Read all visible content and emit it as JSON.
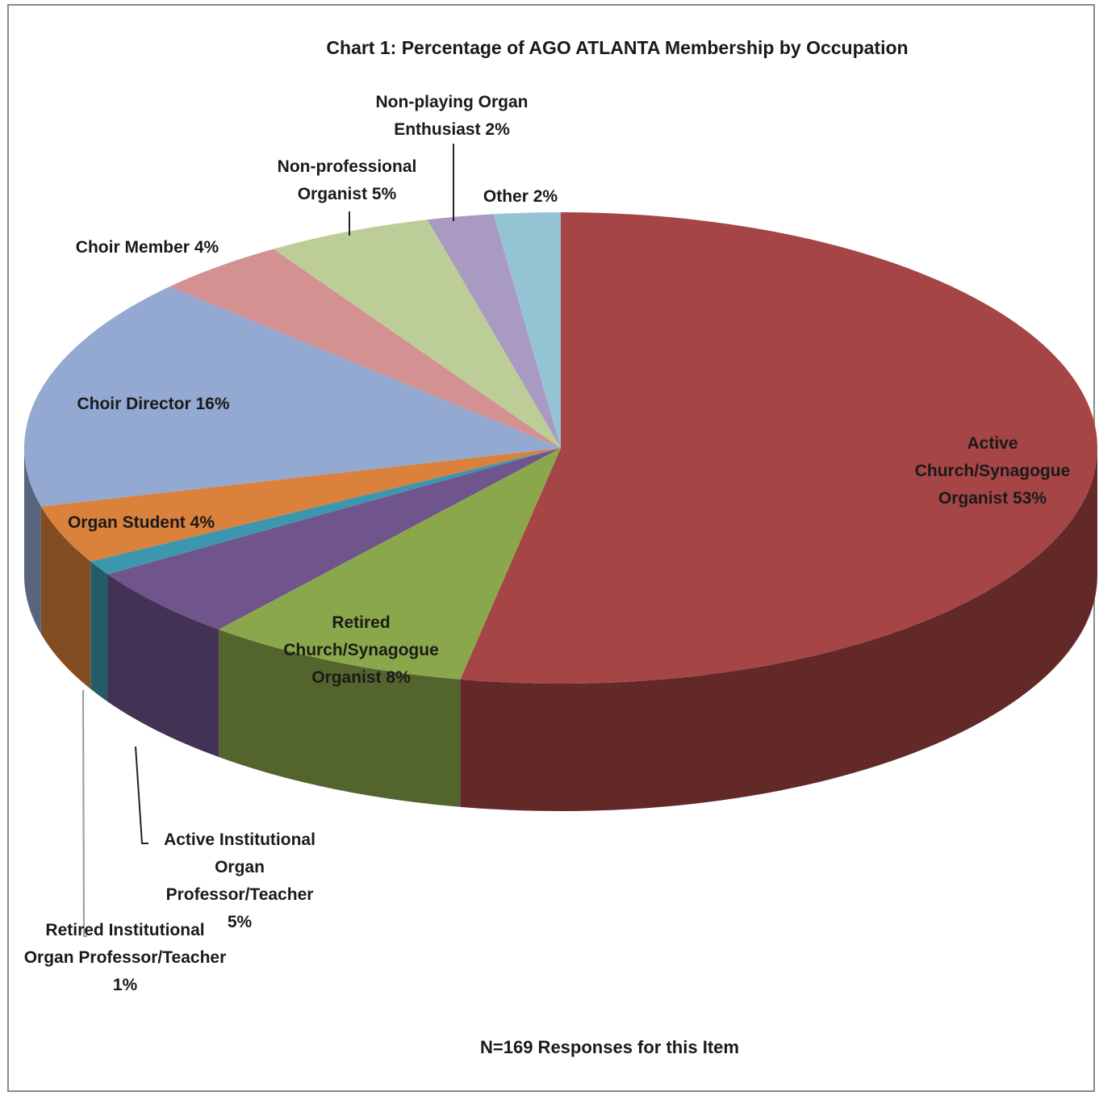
{
  "chart_data": {
    "type": "pie",
    "title": "Chart 1: Percentage of AGO ATLANTA Membership by Occupation",
    "note": "N=169 Responses for this Item",
    "categories": [
      "Active Church/Synagogue Organist",
      "Retired Church/Synagogue Organist",
      "Active Institutional Organ Professor/Teacher",
      "Retired Institutional Organ Professor/Teacher",
      "Organ Student",
      "Choir Director",
      "Choir Member",
      "Non-professional Organist",
      "Non-playing Organ Enthusiast",
      "Other"
    ],
    "values": [
      53,
      8,
      5,
      1,
      4,
      16,
      4,
      5,
      2,
      2
    ],
    "value_labels": [
      "53%",
      "8%",
      "5%",
      "1%",
      "4%",
      "16%",
      "4%",
      "5%",
      "2%",
      "2%"
    ],
    "colors": [
      "#a54545",
      "#8aa84b",
      "#70548c",
      "#3c97ae",
      "#da813c",
      "#93a9d1",
      "#d49191",
      "#bdcd97",
      "#a99ac1",
      "#94c4d4"
    ]
  }
}
